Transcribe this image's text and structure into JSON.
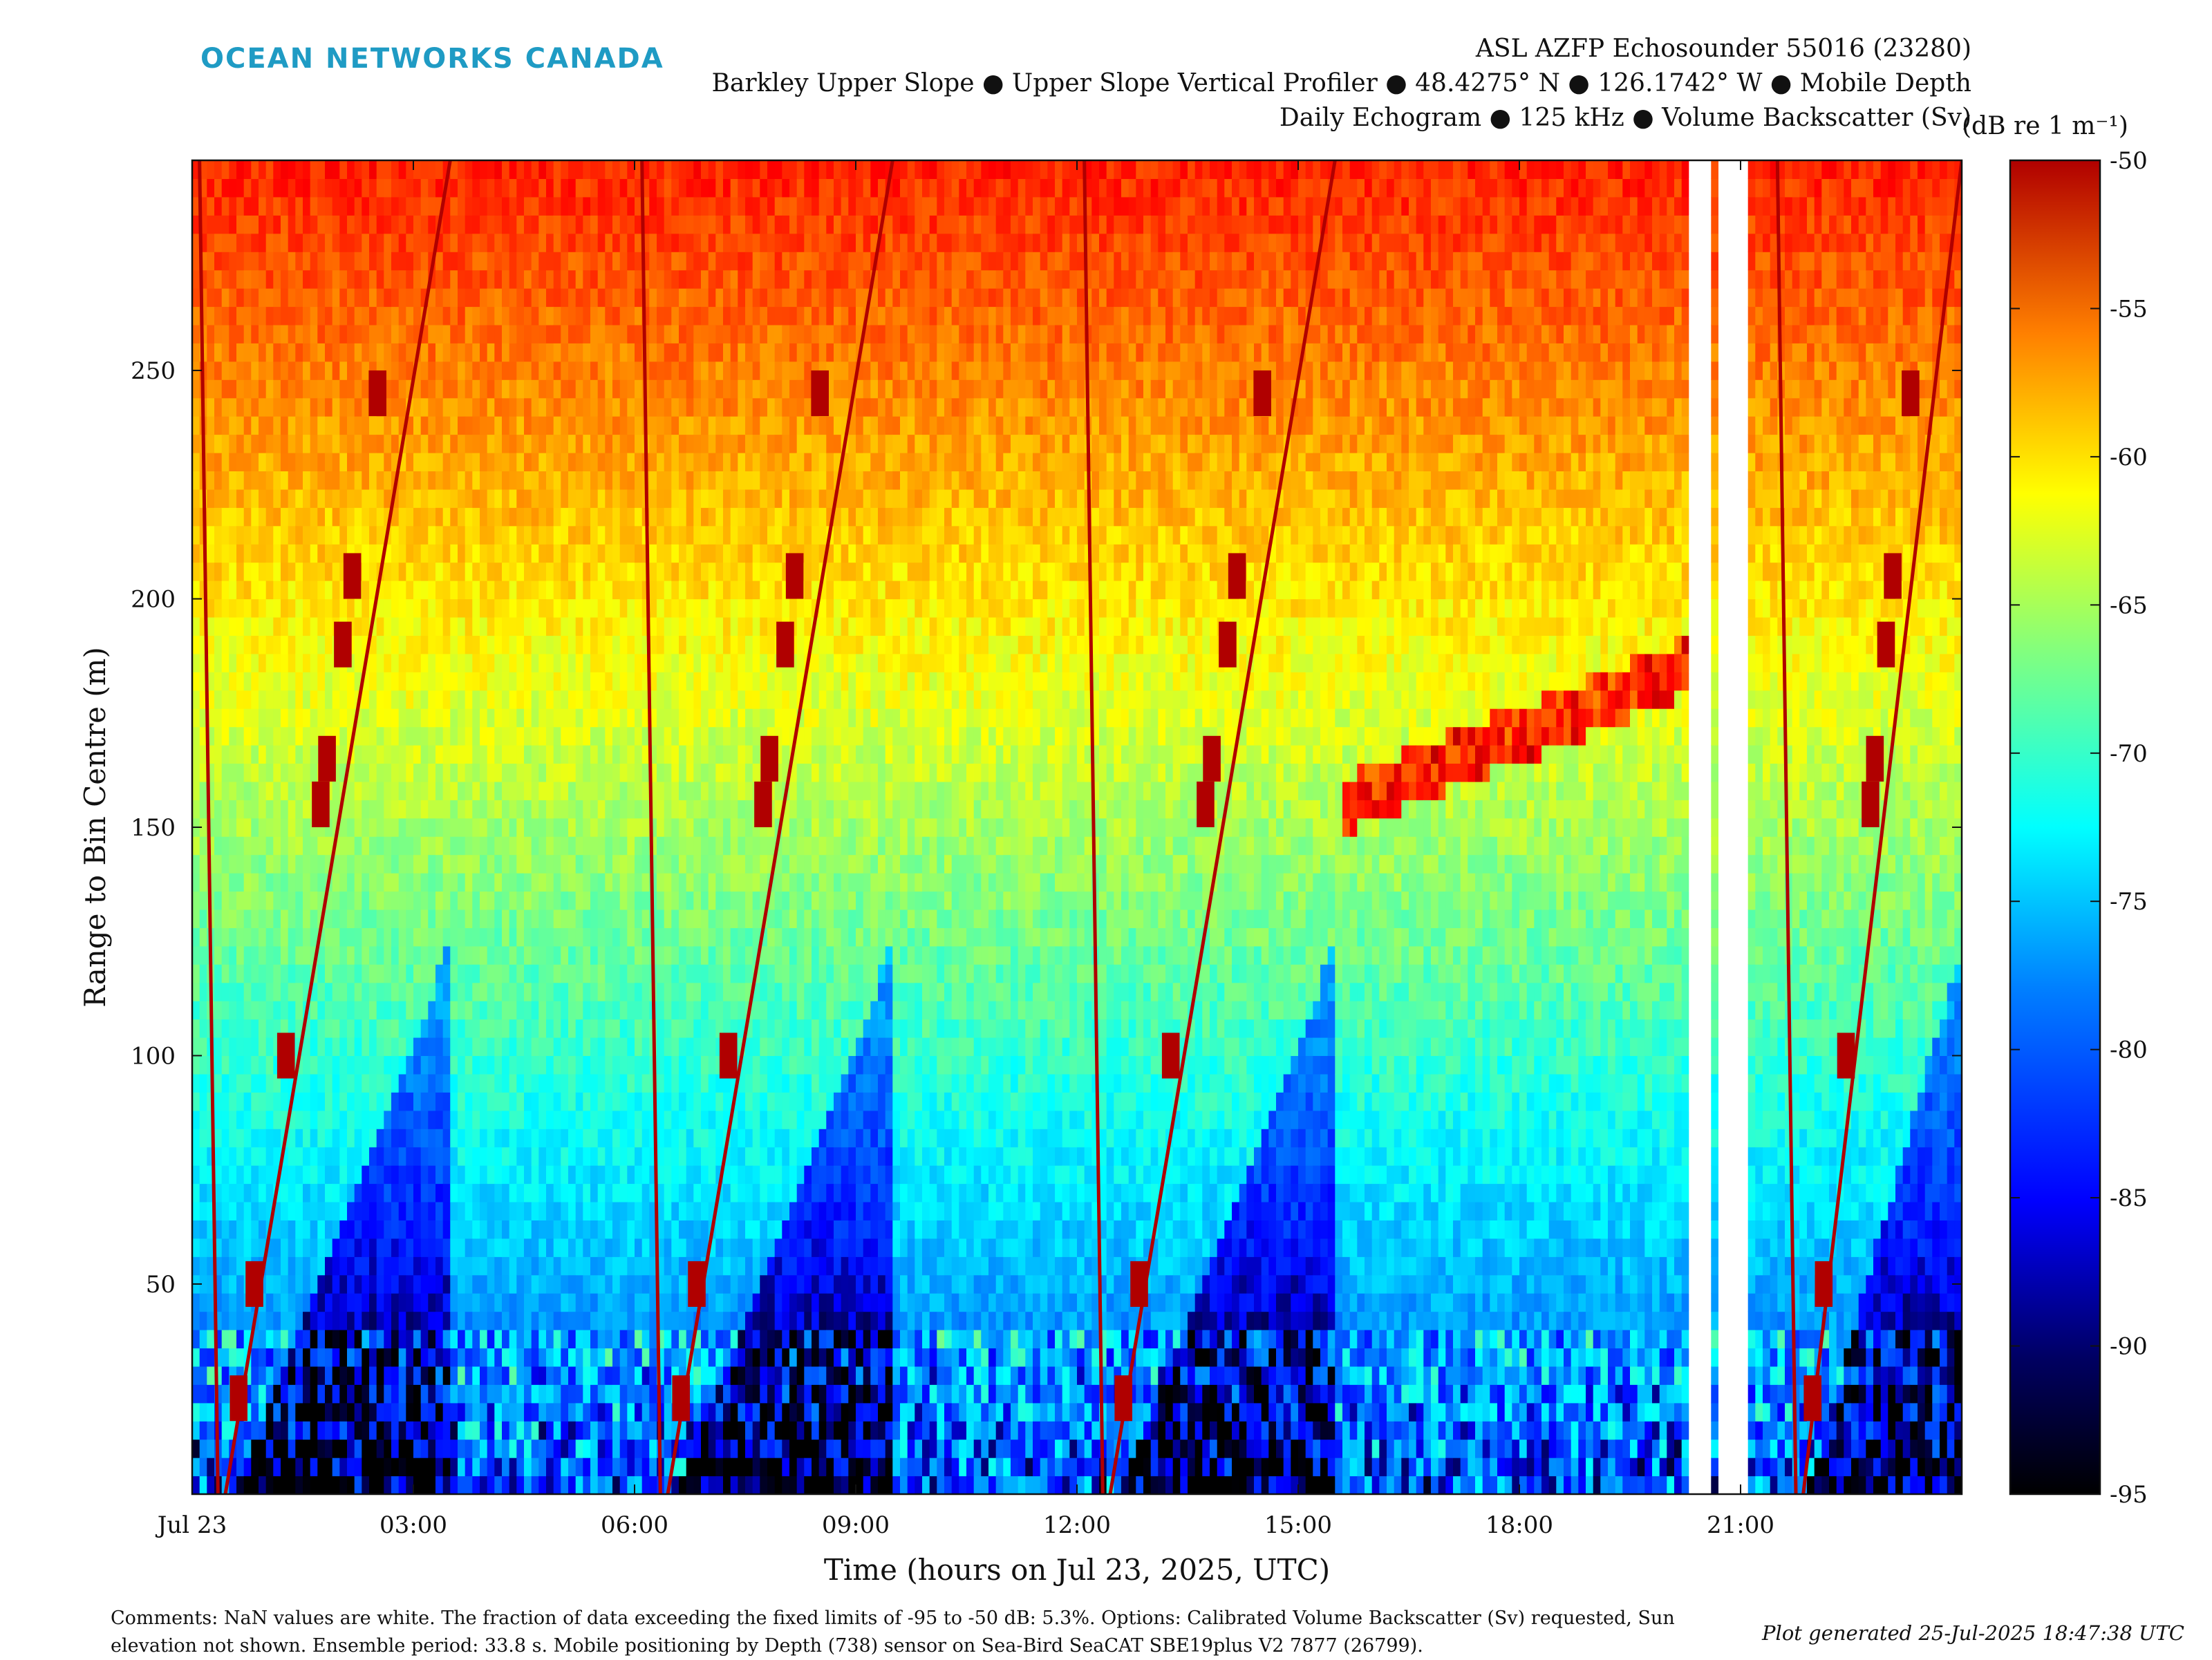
{
  "header": {
    "logo_text": "OCEAN NETWORKS CANADA",
    "title_line1": "ASL AZFP Echosounder 55016 (23280)",
    "title_line2": "Barkley Upper Slope ● Upper Slope Vertical Profiler ● 48.4275° N ● 126.1742° W ● Mobile Depth",
    "title_line3": "Daily Echogram ● 125 kHz ● Volume Backscatter (Sv)"
  },
  "colorbar": {
    "unit_label": "(dB re 1 m⁻¹)",
    "ticks": [
      "-50",
      "-55",
      "-60",
      "-65",
      "-70",
      "-75",
      "-80",
      "-85",
      "-90",
      "-95"
    ],
    "range": [
      -95,
      -50
    ],
    "colormap": "jet"
  },
  "footer": {
    "comments": "Comments: NaN values are white. The fraction of data exceeding the fixed limits of -95 to -50 dB: 5.3%. Options: Calibrated Volume Backscatter (Sv) requested, Sun elevation not shown. Ensemble period: 33.8 s. Mobile positioning by Depth (738) sensor on Sea-Bird SeaCAT SBE19plus V2 7877 (26799).",
    "generated": "Plot generated 25-Jul-2025 18:47:38 UTC"
  },
  "chart_data": {
    "type": "heatmap",
    "xlabel": "Time (hours on Jul 23, 2025, UTC)",
    "ylabel": "Range to Bin Centre (m)",
    "x_unit": "hours",
    "xlim": [
      0,
      24
    ],
    "ylim": [
      4,
      296
    ],
    "x_ticks": [
      {
        "value": 0,
        "label": "Jul 23"
      },
      {
        "value": 3,
        "label": "03:00"
      },
      {
        "value": 6,
        "label": "06:00"
      },
      {
        "value": 9,
        "label": "09:00"
      },
      {
        "value": 12,
        "label": "12:00"
      },
      {
        "value": 15,
        "label": "15:00"
      },
      {
        "value": 18,
        "label": "18:00"
      },
      {
        "value": 21,
        "label": "21:00"
      }
    ],
    "y_ticks": [
      50,
      100,
      150,
      200,
      250
    ],
    "z_label": "Volume Backscatter (Sv)",
    "z_unit": "dB re 1 m⁻¹",
    "z_range": [
      -95,
      -50
    ],
    "nan_gaps_hours": [
      [
        20.35,
        20.65
      ],
      [
        20.7,
        21.15
      ]
    ],
    "profile_cycles": [
      {
        "start": 0.1,
        "descent_end": 0.35,
        "ascent_start": 0.45,
        "ascent_end": 3.5
      },
      {
        "start": 6.1,
        "descent_end": 6.35,
        "ascent_start": 6.45,
        "ascent_end": 9.5
      },
      {
        "start": 12.1,
        "descent_end": 12.35,
        "ascent_start": 12.45,
        "ascent_end": 15.5
      },
      {
        "start": 21.5,
        "descent_end": 21.75,
        "ascent_start": 21.85,
        "ascent_end": 24.0
      }
    ],
    "parked_bands_m": [
      25,
      50,
      100,
      155,
      165,
      190,
      205,
      245
    ],
    "surface_sv_db": -57,
    "mid_sv_db": -73,
    "deep_sv_db": -88,
    "scattering_layer": {
      "t_start": 15.6,
      "t_end": 20.3,
      "range_m": [
        155,
        185
      ]
    }
  }
}
